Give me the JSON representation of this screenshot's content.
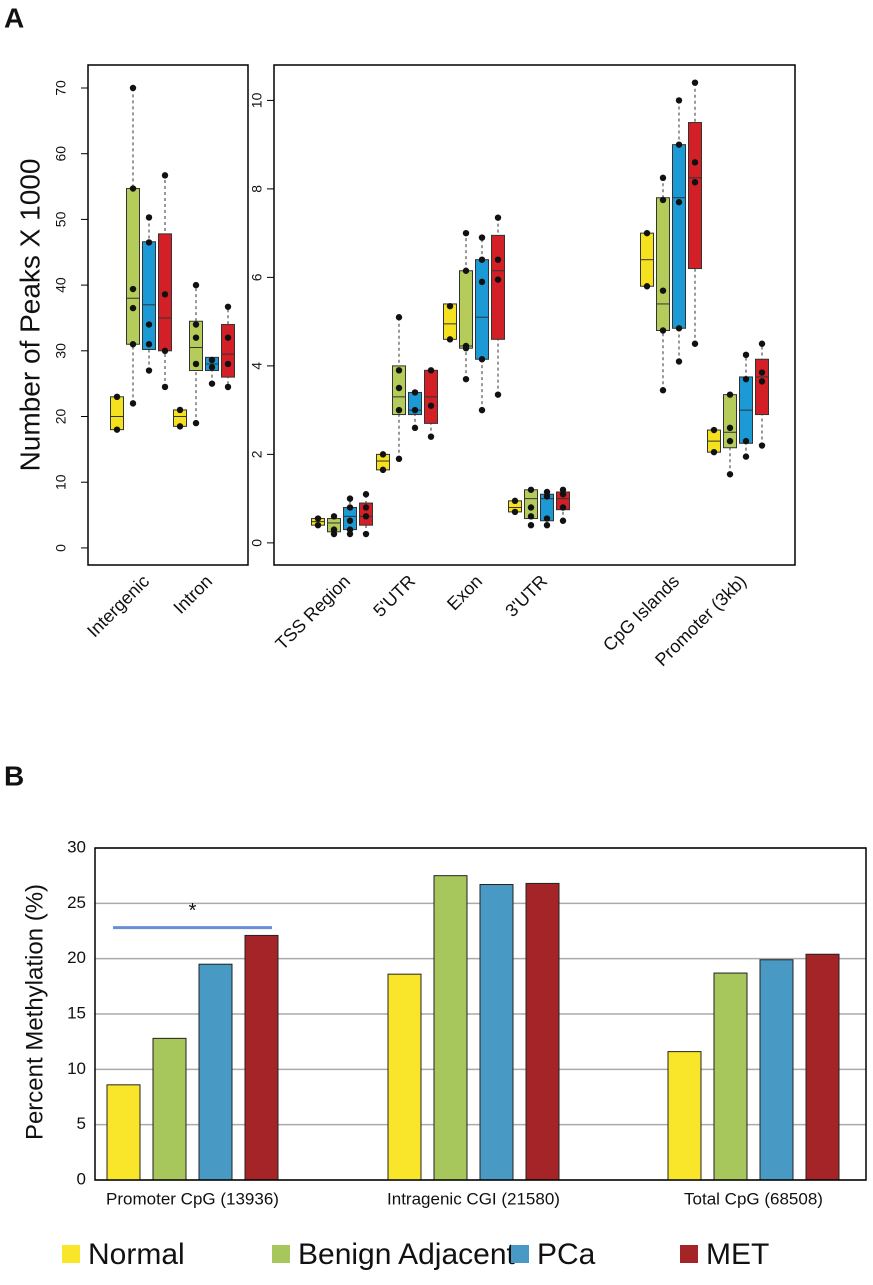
{
  "chart_data": [
    {
      "type": "box",
      "panel": "A",
      "ylabel": "Number of Peaks X 1000",
      "categories": [
        "Intergenic",
        "Intron"
      ],
      "ylim": [
        -2.6,
        73.5
      ],
      "yticks": [
        0,
        10,
        20,
        30,
        40,
        50,
        60,
        70
      ],
      "series": [
        {
          "color": "#f5e11e",
          "values": [
            {
              "min": 18,
              "q1": 18,
              "median": 20,
              "q3": 23,
              "max": 23,
              "points": [
                18,
                23
              ]
            },
            {
              "min": 18.5,
              "q1": 18.5,
              "median": 20,
              "q3": 21,
              "max": 21,
              "points": [
                18.5,
                21
              ]
            }
          ]
        },
        {
          "color": "#b5cc5a",
          "values": [
            {
              "min": 22,
              "q1": 31,
              "median": 38,
              "q3": 54.7,
              "max": 70,
              "points": [
                70,
                54.7,
                39.4,
                36.5,
                31,
                22
              ]
            },
            {
              "min": 19,
              "q1": 27,
              "median": 30.5,
              "q3": 34.5,
              "max": 40,
              "points": [
                40,
                34,
                32,
                28,
                19
              ]
            }
          ]
        },
        {
          "color": "#1b9ad6",
          "values": [
            {
              "min": 27,
              "q1": 30.2,
              "median": 37,
              "q3": 46.6,
              "max": 50.3,
              "points": [
                50.3,
                46.5,
                34,
                31,
                27
              ]
            },
            {
              "min": 25,
              "q1": 27,
              "median": 28,
              "q3": 29,
              "max": 29,
              "points": [
                28.6,
                27.5,
                25
              ]
            }
          ]
        },
        {
          "color": "#d32027",
          "values": [
            {
              "min": 24.5,
              "q1": 30,
              "median": 35,
              "q3": 47.8,
              "max": 56.7,
              "points": [
                56.7,
                38.6,
                30,
                24.5
              ]
            },
            {
              "min": 24,
              "q1": 26,
              "median": 29.5,
              "q3": 34,
              "max": 36.7,
              "points": [
                36.7,
                32,
                28,
                24.5
              ]
            }
          ]
        }
      ]
    },
    {
      "type": "box",
      "categories": [
        "TSS Region",
        "5'UTR",
        "Exon",
        "3'UTR",
        "CpG Islands",
        "Promoter (3kb)"
      ],
      "ylim": [
        -0.5,
        10.8
      ],
      "yticks": [
        0,
        2,
        4,
        6,
        8,
        10
      ],
      "series": [
        {
          "color": "#f5e11e",
          "values": [
            {
              "min": 0.4,
              "q1": 0.4,
              "median": 0.48,
              "q3": 0.55,
              "max": 0.55,
              "points": [
                0.4,
                0.55
              ]
            },
            {
              "min": 1.65,
              "q1": 1.65,
              "median": 1.85,
              "q3": 2.0,
              "max": 2.0,
              "points": [
                1.65,
                2.0
              ]
            },
            {
              "min": 4.6,
              "q1": 4.6,
              "median": 4.95,
              "q3": 5.4,
              "max": 5.4,
              "points": [
                5.35,
                4.6
              ]
            },
            {
              "min": 0.7,
              "q1": 0.7,
              "median": 0.8,
              "q3": 0.95,
              "max": 0.95,
              "points": [
                0.95,
                0.7
              ]
            },
            {
              "min": 5.8,
              "q1": 5.8,
              "median": 6.4,
              "q3": 7.0,
              "max": 7.0,
              "points": [
                7.0,
                5.8
              ]
            },
            {
              "min": 2.05,
              "q1": 2.05,
              "median": 2.3,
              "q3": 2.55,
              "max": 2.55,
              "points": [
                2.55,
                2.05
              ]
            }
          ]
        },
        {
          "color": "#b5cc5a",
          "values": [
            {
              "min": 0.2,
              "q1": 0.25,
              "median": 0.45,
              "q3": 0.55,
              "max": 0.6,
              "points": [
                0.6,
                0.3,
                0.2
              ]
            },
            {
              "min": 1.9,
              "q1": 2.9,
              "median": 3.3,
              "q3": 4.0,
              "max": 5.1,
              "points": [
                5.1,
                3.9,
                3.5,
                3.0,
                1.9
              ]
            },
            {
              "min": 3.7,
              "q1": 4.4,
              "median": 4.45,
              "q3": 6.15,
              "max": 7.0,
              "points": [
                7.0,
                6.15,
                4.45,
                4.4,
                3.7
              ]
            },
            {
              "min": 0.4,
              "q1": 0.55,
              "median": 1.0,
              "q3": 1.2,
              "max": 1.2,
              "points": [
                1.2,
                0.8,
                0.6,
                0.4
              ]
            },
            {
              "min": 3.45,
              "q1": 4.8,
              "median": 5.4,
              "q3": 7.8,
              "max": 8.25,
              "points": [
                8.25,
                7.75,
                5.7,
                4.8,
                3.45
              ]
            },
            {
              "min": 1.55,
              "q1": 2.15,
              "median": 2.5,
              "q3": 3.35,
              "max": 3.35,
              "points": [
                3.35,
                2.6,
                2.3,
                1.55
              ]
            }
          ]
        },
        {
          "color": "#1b9ad6",
          "values": [
            {
              "min": 0.2,
              "q1": 0.3,
              "median": 0.6,
              "q3": 0.8,
              "max": 1.0,
              "points": [
                1.0,
                0.8,
                0.5,
                0.3,
                0.2
              ]
            },
            {
              "min": 2.6,
              "q1": 2.9,
              "median": 3.0,
              "q3": 3.4,
              "max": 3.4,
              "points": [
                3.4,
                3.0,
                2.6
              ]
            },
            {
              "min": 3.0,
              "q1": 4.15,
              "median": 5.1,
              "q3": 6.4,
              "max": 6.9,
              "points": [
                6.9,
                6.4,
                5.9,
                4.15,
                3.0
              ]
            },
            {
              "min": 0.4,
              "q1": 0.5,
              "median": 1.0,
              "q3": 1.1,
              "max": 1.15,
              "points": [
                1.15,
                1.05,
                0.55,
                0.4
              ]
            },
            {
              "min": 4.1,
              "q1": 4.85,
              "median": 7.8,
              "q3": 9.0,
              "max": 10.0,
              "points": [
                10.0,
                9.0,
                7.7,
                4.85,
                4.1
              ]
            },
            {
              "min": 1.95,
              "q1": 2.25,
              "median": 3.0,
              "q3": 3.75,
              "max": 4.25,
              "points": [
                4.25,
                3.7,
                2.3,
                1.95
              ]
            }
          ]
        },
        {
          "color": "#d32027",
          "values": [
            {
              "min": 0.2,
              "q1": 0.4,
              "median": 0.6,
              "q3": 0.9,
              "max": 1.1,
              "points": [
                1.1,
                0.8,
                0.6,
                0.2
              ]
            },
            {
              "min": 2.4,
              "q1": 2.7,
              "median": 3.3,
              "q3": 3.9,
              "max": 3.9,
              "points": [
                3.9,
                3.1,
                2.4
              ]
            },
            {
              "min": 3.35,
              "q1": 4.6,
              "median": 6.15,
              "q3": 6.95,
              "max": 7.35,
              "points": [
                7.35,
                6.4,
                5.95,
                3.35
              ]
            },
            {
              "min": 0.5,
              "q1": 0.75,
              "median": 1.0,
              "q3": 1.15,
              "max": 1.2,
              "points": [
                1.2,
                1.1,
                0.8,
                0.5
              ]
            },
            {
              "min": 4.5,
              "q1": 6.2,
              "median": 8.25,
              "q3": 9.5,
              "max": 10.4,
              "points": [
                10.4,
                8.6,
                8.15,
                4.5
              ]
            },
            {
              "min": 2.2,
              "q1": 2.9,
              "median": 3.75,
              "q3": 4.15,
              "max": 4.5,
              "points": [
                4.5,
                3.85,
                3.65,
                2.2
              ]
            }
          ]
        }
      ]
    },
    {
      "type": "bar",
      "panel": "B",
      "ylabel": "Percent Methylation (%)",
      "categories": [
        "Promoter CpG (13936)",
        "Intragenic CGI (21580)",
        "Total CpG (68508)"
      ],
      "ylim": [
        0,
        30
      ],
      "yticks": [
        0,
        5,
        10,
        15,
        20,
        25,
        30
      ],
      "grid": true,
      "annotation": {
        "text": "*",
        "y": 22.8,
        "color": "#6a8fd6"
      },
      "series": [
        {
          "name": "Normal",
          "color": "#f9e62b",
          "values": [
            8.6,
            18.6,
            11.6
          ]
        },
        {
          "name": "Benign Adjacent",
          "color": "#a7c75c",
          "values": [
            12.8,
            27.5,
            18.7
          ]
        },
        {
          "name": "PCa",
          "color": "#4899c4",
          "values": [
            19.5,
            26.7,
            19.9
          ]
        },
        {
          "name": "MET",
          "color": "#a52428",
          "values": [
            22.1,
            26.8,
            20.4
          ]
        }
      ]
    }
  ]
}
